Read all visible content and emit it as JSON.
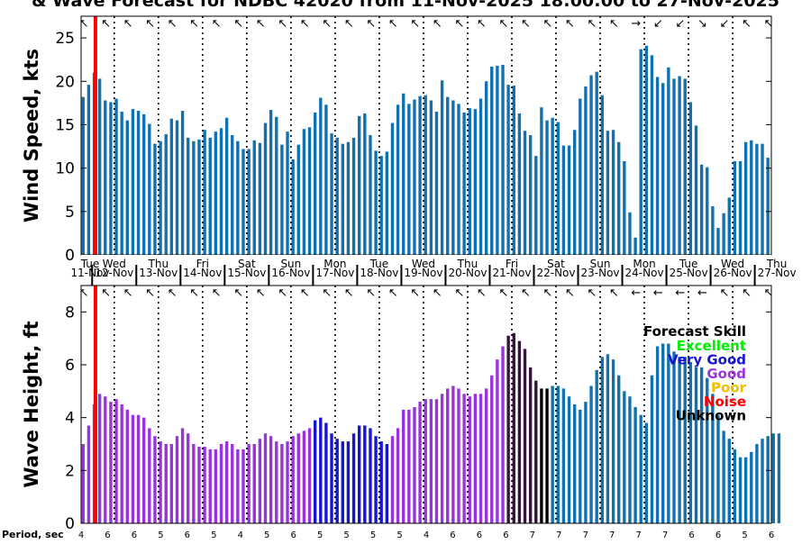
{
  "title": "& Wave Forecast for NDBC 42020 from 11-Nov-2025 18:00:00 to 27-Nov-2025",
  "colors": {
    "excellent": "#00ee00",
    "very_good": "#1515d6",
    "good": "#9933dd",
    "poor": "#f0c000",
    "noise": "#ff0000",
    "unknown": "#000000",
    "forecast_bar": "#1070b0",
    "poor_bar": "#3a1040",
    "now_line": "#ff0000"
  },
  "day_labels": [
    {
      "dow": "Tue",
      "date": "11-Nov"
    },
    {
      "dow": "Wed",
      "date": "12-Nov"
    },
    {
      "dow": "Thu",
      "date": "13-Nov"
    },
    {
      "dow": "Fri",
      "date": "14-Nov"
    },
    {
      "dow": "Sat",
      "date": "15-Nov"
    },
    {
      "dow": "Sun",
      "date": "16-Nov"
    },
    {
      "dow": "Mon",
      "date": "17-Nov"
    },
    {
      "dow": "Tue",
      "date": "18-Nov"
    },
    {
      "dow": "Wed",
      "date": "19-Nov"
    },
    {
      "dow": "Thu",
      "date": "20-Nov"
    },
    {
      "dow": "Fri",
      "date": "21-Nov"
    },
    {
      "dow": "Sat",
      "date": "22-Nov"
    },
    {
      "dow": "Sun",
      "date": "23-Nov"
    },
    {
      "dow": "Mon",
      "date": "24-Nov"
    },
    {
      "dow": "Tue",
      "date": "25-Nov"
    },
    {
      "dow": "Wed",
      "date": "26-Nov"
    },
    {
      "dow": "Thu",
      "date": "27-Nov"
    }
  ],
  "legend": {
    "title": "Forecast Skill",
    "items": [
      {
        "label": "Excellent",
        "key": "excellent"
      },
      {
        "label": "Very Good",
        "key": "very_good"
      },
      {
        "label": "Good",
        "key": "good"
      },
      {
        "label": "Poor",
        "key": "poor"
      },
      {
        "label": "Noise",
        "key": "noise"
      },
      {
        "label": "Unknown",
        "key": "unknown"
      }
    ]
  },
  "period_label": "Period, sec",
  "period_values": [
    4,
    6,
    6,
    5,
    6,
    5,
    4,
    5,
    6,
    5,
    5,
    5,
    5,
    4,
    6,
    6,
    6,
    7,
    7,
    7,
    7,
    7,
    7,
    6,
    6,
    5,
    6
  ],
  "chart_data": [
    {
      "type": "bar",
      "ylabel": "Wind Speed, kts",
      "ylim": [
        0,
        27.5
      ],
      "yticks": [
        0,
        5,
        10,
        15,
        20,
        25
      ],
      "x_start": "11-Nov-2025 18:00",
      "x_step_hours": 3,
      "values": [
        18.2,
        19.6,
        21.0,
        20.3,
        17.8,
        17.6,
        18.0,
        16.5,
        15.5,
        16.8,
        16.6,
        16.2,
        15.1,
        12.8,
        13.1,
        13.9,
        15.7,
        15.5,
        16.6,
        13.5,
        13.1,
        13.3,
        14.4,
        13.5,
        14.2,
        14.6,
        15.8,
        13.8,
        13.1,
        12.2,
        12.2,
        13.2,
        12.9,
        15.2,
        16.7,
        15.9,
        12.7,
        14.2,
        11.0,
        12.7,
        14.5,
        14.7,
        16.4,
        18.1,
        17.3,
        14.0,
        13.5,
        12.8,
        13.0,
        13.5,
        16.0,
        16.3,
        13.8,
        12.0,
        11.4,
        11.9,
        15.2,
        17.3,
        18.6,
        17.4,
        17.9,
        18.3,
        18.4,
        17.8,
        16.5,
        20.1,
        18.2,
        17.8,
        17.4,
        16.4,
        16.9,
        16.8,
        18.0,
        20.0,
        21.7,
        21.8,
        21.9,
        19.6,
        19.5,
        16.3,
        14.3,
        13.8,
        11.4,
        17.0,
        15.5,
        15.8,
        15.3,
        12.6,
        12.6,
        14.4,
        18.0,
        19.4,
        20.7,
        21.1,
        18.4,
        14.3,
        14.4,
        13.0,
        10.8,
        4.9,
        2.0,
        23.7,
        24.1,
        23.0,
        20.5,
        19.8,
        21.6,
        20.3,
        20.6,
        20.3,
        17.6,
        14.9,
        10.4,
        10.1,
        5.6,
        3.1,
        4.8,
        6.6,
        10.8,
        10.8,
        13.0,
        13.2,
        12.8,
        12.8,
        11.2
      ],
      "direction_arrows": [
        "↖",
        "↖",
        "↖",
        "↖",
        "↖",
        "↖",
        "↖",
        "↖",
        "↖",
        "↖",
        "↖",
        "↖",
        "↖",
        "↖",
        "↖",
        "↖",
        "↖",
        "↖",
        "↖",
        "↖",
        "↖",
        "↖",
        "↖",
        "↖",
        "↖",
        "↖",
        "↖",
        "↖",
        "↖",
        "↖",
        "↖",
        "↖",
        "↖",
        "↖",
        "↖",
        "↖",
        "↖",
        "↖",
        "↖",
        "↖",
        "↖",
        "↖",
        "↖",
        "↖",
        "↖",
        "↖",
        "↖",
        "↖",
        "↖",
        "↖",
        "↖",
        "↖",
        "↖",
        "↖",
        "↖",
        "↖",
        "↖",
        "↖",
        "↖",
        "↖",
        "↖",
        "↖",
        "↖",
        "↖",
        "↖",
        "↖",
        "↖",
        "↖",
        "↖",
        "↖",
        "↖",
        "↖",
        "↖",
        "↖",
        "↖",
        "↖",
        "↖",
        "↖",
        "↖",
        "↖",
        "↖",
        "↖",
        "↖",
        "↖",
        "↖",
        "↖",
        "↖",
        "↖",
        "↖",
        "↖",
        "↖",
        "↖",
        "↖",
        "↖",
        "↖",
        "↖",
        "↖",
        "↖",
        "↖",
        "↖",
        "→",
        "→",
        "↙",
        "↙",
        "↙",
        "↙",
        "↙",
        "↙",
        "↙",
        "↙",
        "↙",
        "↘",
        "↘",
        "↘",
        "↘",
        "↙",
        "↙",
        "↙",
        "↖",
        "↖",
        "↖",
        "↖",
        "↖",
        "↖",
        "↖"
      ]
    },
    {
      "type": "bar",
      "ylabel": "Wave Height, ft",
      "ylim": [
        0,
        9
      ],
      "yticks": [
        0,
        2,
        4,
        6,
        8
      ],
      "x_start": "11-Nov-2025 18:00",
      "x_step_hours": 3,
      "values": [
        3.0,
        3.7,
        4.5,
        4.9,
        4.8,
        4.6,
        4.7,
        4.5,
        4.3,
        4.1,
        4.1,
        4.0,
        3.6,
        3.3,
        3.1,
        3.0,
        3.0,
        3.3,
        3.6,
        3.4,
        3.0,
        2.9,
        2.9,
        2.8,
        2.8,
        3.0,
        3.1,
        3.0,
        2.8,
        2.8,
        3.0,
        3.0,
        3.2,
        3.4,
        3.3,
        3.1,
        3.0,
        3.1,
        3.3,
        3.4,
        3.5,
        3.6,
        3.9,
        4.0,
        3.8,
        3.4,
        3.2,
        3.1,
        3.1,
        3.4,
        3.7,
        3.7,
        3.6,
        3.3,
        3.1,
        3.0,
        3.3,
        3.6,
        4.3,
        4.3,
        4.4,
        4.6,
        4.7,
        4.7,
        4.7,
        4.9,
        5.1,
        5.2,
        5.1,
        4.9,
        4.8,
        4.9,
        4.9,
        5.1,
        5.6,
        6.2,
        6.7,
        7.1,
        7.2,
        6.9,
        6.6,
        5.9,
        5.4,
        5.1,
        5.1,
        5.2,
        5.2,
        5.1,
        4.8,
        4.5,
        4.3,
        4.6,
        5.2,
        5.8,
        6.3,
        6.4,
        6.2,
        5.6,
        5.0,
        4.8,
        4.4,
        4.1,
        3.8,
        5.6,
        6.7,
        6.8,
        6.8,
        6.5,
        6.3,
        6.3,
        6.1,
        5.9,
        5.9,
        5.5,
        4.9,
        4.1,
        3.5,
        3.2,
        2.8,
        2.5,
        2.5,
        2.7,
        3.0,
        3.2,
        3.3,
        3.4,
        3.4
      ],
      "bar_skill": [
        "good",
        "good",
        "good",
        "good",
        "good",
        "good",
        "good",
        "good",
        "good",
        "good",
        "good",
        "good",
        "good",
        "good",
        "good",
        "good",
        "good",
        "good",
        "good",
        "good",
        "good",
        "good",
        "good",
        "good",
        "good",
        "good",
        "good",
        "good",
        "good",
        "good",
        "good",
        "good",
        "good",
        "good",
        "good",
        "good",
        "good",
        "good",
        "good",
        "good",
        "good",
        "good",
        "very_good",
        "very_good",
        "very_good",
        "very_good",
        "very_good",
        "very_good",
        "very_good",
        "very_good",
        "very_good",
        "very_good",
        "very_good",
        "very_good",
        "very_good",
        "very_good",
        "good",
        "good",
        "good",
        "good",
        "good",
        "good",
        "good",
        "good",
        "good",
        "good",
        "good",
        "good",
        "good",
        "good",
        "good",
        "good",
        "good",
        "good",
        "good",
        "good",
        "good",
        "poor",
        "poor",
        "poor",
        "poor",
        "poor",
        "poor",
        "unknown",
        "unknown",
        "forecast",
        "forecast",
        "forecast",
        "forecast",
        "forecast",
        "forecast",
        "forecast",
        "forecast",
        "forecast",
        "forecast",
        "forecast",
        "forecast",
        "forecast",
        "forecast",
        "forecast",
        "forecast",
        "forecast",
        "forecast",
        "forecast",
        "forecast",
        "forecast",
        "forecast",
        "forecast",
        "forecast",
        "forecast",
        "forecast",
        "forecast",
        "forecast",
        "forecast",
        "forecast",
        "forecast",
        "forecast",
        "forecast",
        "forecast",
        "forecast",
        "forecast",
        "forecast",
        "forecast",
        "forecast",
        "forecast",
        "forecast",
        "forecast"
      ],
      "direction_arrows": [
        "↖",
        "↖",
        "↖",
        "↖",
        "↖",
        "↖",
        "↖",
        "↖",
        "↖",
        "↖",
        "↖",
        "↖",
        "↖",
        "↖",
        "↖",
        "↖",
        "↖",
        "↖",
        "↖",
        "↖",
        "↖",
        "↖",
        "↖",
        "↖",
        "↖",
        "↖",
        "↖",
        "↖",
        "↖",
        "↖",
        "↖",
        "↖",
        "↖",
        "↖",
        "↖",
        "↖",
        "↖",
        "↖",
        "↖",
        "↖",
        "↖",
        "↖",
        "↖",
        "↖",
        "↖",
        "↖",
        "↖",
        "↖",
        "↖",
        "↖",
        "↖",
        "↖",
        "↖",
        "↖",
        "↖",
        "↖",
        "↖",
        "↖",
        "↖",
        "↖",
        "↖",
        "↖",
        "↖",
        "↖",
        "↖",
        "↖",
        "↖",
        "↖",
        "↖",
        "↖",
        "↖",
        "↖",
        "↖",
        "↖",
        "↖",
        "↖",
        "↖",
        "↖",
        "↖",
        "↖",
        "↖",
        "↖",
        "↖",
        "↖",
        "↖",
        "↖",
        "↖",
        "↖",
        "↖",
        "↖",
        "↖",
        "↖",
        "↖",
        "↖",
        "↖",
        "↖",
        "↖",
        "↖",
        "↖",
        "↖",
        "←",
        "←",
        "←",
        "←",
        "←",
        "←",
        "←",
        "←",
        "←",
        "←",
        "←",
        "←",
        "←",
        "←",
        "↖",
        "↖",
        "↖",
        "↖",
        "↖",
        "↖",
        "↖",
        "↖",
        "↖",
        "↖",
        "↖",
        "↖",
        "↖"
      ]
    }
  ]
}
